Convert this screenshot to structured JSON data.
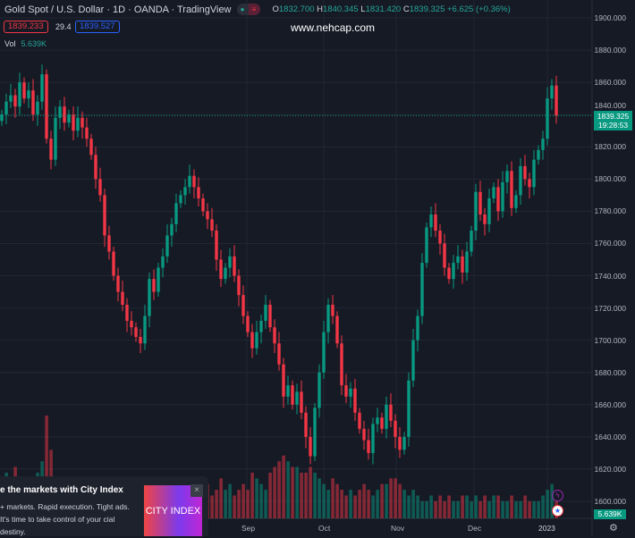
{
  "header": {
    "title": "Gold Spot / U.S. Dollar · 1D · OANDA · TradingView",
    "o_label": "O",
    "o": "1832.700",
    "h_label": "H",
    "h": "1840.345",
    "l_label": "L",
    "l": "1831.420",
    "c_label": "C",
    "c": "1839.325",
    "change": "+6.625 (+0.36%)"
  },
  "bid": "1839.233",
  "spread": "29.4",
  "ask": "1839.527",
  "watermark": "www.nehcap.com",
  "volume": {
    "label": "Vol",
    "value": "5.639K"
  },
  "price_axis": [
    "1900.000",
    "1880.000",
    "1860.000",
    "1840.000",
    "1820.000",
    "1800.000",
    "1780.000",
    "1760.000",
    "1740.000",
    "1720.000",
    "1700.000",
    "1680.000",
    "1660.000",
    "1640.000",
    "1620.000",
    "1600.000"
  ],
  "last_price": "1839.325",
  "countdown": "19:28:53",
  "time_axis": [
    "Sep",
    "Oct",
    "Nov",
    "Dec",
    "2023"
  ],
  "ad": {
    "headline": "e the markets with City Index",
    "body": "+ markets. Rapid execution. Tight ads. It's time to take control of your cial destiny.",
    "logo": "CITY INDEX",
    "close": "×"
  },
  "colors": {
    "up": "#089981",
    "down": "#f23645",
    "bg": "#161a25"
  },
  "chart_data": {
    "type": "candlestick",
    "ylim": [
      1600,
      1900
    ],
    "closes": [
      1840,
      1848,
      1852,
      1845,
      1860,
      1850,
      1855,
      1840,
      1848,
      1865,
      1825,
      1812,
      1838,
      1845,
      1835,
      1840,
      1830,
      1838,
      1832,
      1825,
      1815,
      1800,
      1790,
      1765,
      1755,
      1740,
      1730,
      1722,
      1712,
      1708,
      1702,
      1698,
      1715,
      1738,
      1730,
      1745,
      1752,
      1765,
      1772,
      1785,
      1790,
      1795,
      1802,
      1795,
      1788,
      1780,
      1775,
      1768,
      1750,
      1738,
      1745,
      1752,
      1740,
      1728,
      1715,
      1705,
      1695,
      1705,
      1712,
      1722,
      1708,
      1698,
      1685,
      1665,
      1672,
      1660,
      1668,
      1655,
      1640,
      1628,
      1658,
      1680,
      1705,
      1722,
      1715,
      1698,
      1672,
      1665,
      1670,
      1655,
      1645,
      1638,
      1630,
      1648,
      1652,
      1645,
      1660,
      1650,
      1640,
      1632,
      1640,
      1675,
      1700,
      1715,
      1748,
      1770,
      1778,
      1768,
      1760,
      1745,
      1738,
      1748,
      1752,
      1742,
      1755,
      1768,
      1792,
      1778,
      1772,
      1788,
      1795,
      1780,
      1798,
      1805,
      1782,
      1790,
      1808,
      1800,
      1795,
      1812,
      1818,
      1825,
      1850,
      1858,
      1839.325
    ],
    "volumes": [
      6,
      8,
      5,
      9,
      4,
      7,
      5,
      6,
      8,
      10,
      18,
      12,
      7,
      6,
      5,
      6,
      5,
      6,
      4,
      5,
      6,
      5,
      4,
      5,
      6,
      5,
      7,
      4,
      5,
      6,
      5,
      4,
      5,
      6,
      5,
      4,
      6,
      5,
      4,
      5,
      6,
      5,
      4,
      5,
      6,
      5,
      6,
      4,
      5,
      7,
      5,
      6,
      4,
      5,
      6,
      5,
      8,
      7,
      6,
      5,
      8,
      9,
      10,
      11,
      10,
      9,
      9,
      8,
      8,
      9,
      8,
      7,
      6,
      5,
      7,
      6,
      5,
      4,
      5,
      4,
      5,
      6,
      5,
      4,
      5,
      6,
      6,
      7,
      7,
      6,
      5,
      4,
      5,
      4,
      3,
      3,
      4,
      3,
      4,
      3,
      4,
      3,
      3,
      4,
      4,
      3,
      4,
      3,
      4,
      3,
      4,
      4,
      3,
      3,
      4,
      3,
      3,
      4,
      3,
      3,
      3,
      4,
      5,
      6,
      3
    ]
  }
}
